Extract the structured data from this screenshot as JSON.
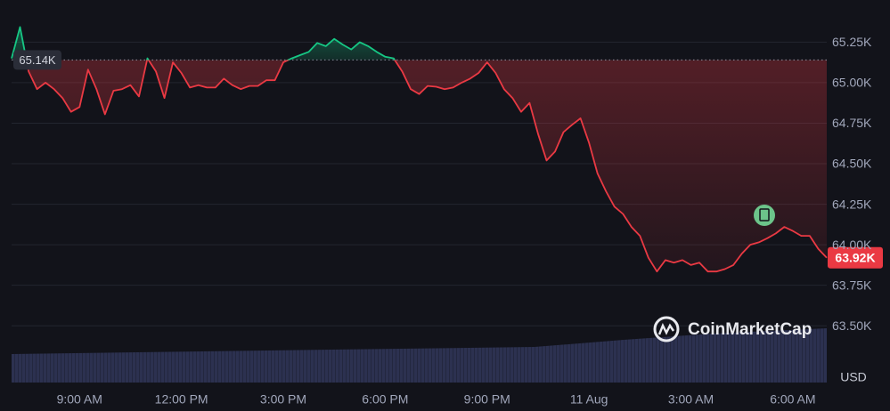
{
  "chart_data": {
    "type": "line",
    "watermark": "CoinMarketCap",
    "y_axis_label": "USD",
    "grid": true,
    "colors": {
      "up": "#16c784",
      "down": "#ea3943"
    },
    "xlim": [
      0,
      96
    ],
    "xticks": [
      {
        "value": 8,
        "label": "9:00 AM"
      },
      {
        "value": 20,
        "label": "12:00 PM"
      },
      {
        "value": 32,
        "label": "3:00 PM"
      },
      {
        "value": 44,
        "label": "6:00 PM"
      },
      {
        "value": 56,
        "label": "9:00 PM"
      },
      {
        "value": 68,
        "label": "11 Aug"
      },
      {
        "value": 80,
        "label": "3:00 AM"
      },
      {
        "value": 92,
        "label": "6:00 AM"
      }
    ],
    "ylim": [
      63150,
      65510
    ],
    "yticks": [
      {
        "value": 63500,
        "label": "63.50K"
      },
      {
        "value": 63750,
        "label": "63.75K"
      },
      {
        "value": 64000,
        "label": "64.00K"
      },
      {
        "value": 64250,
        "label": "64.25K"
      },
      {
        "value": 64500,
        "label": "64.50K"
      },
      {
        "value": 64750,
        "label": "64.75K"
      },
      {
        "value": 65000,
        "label": "65.00K"
      },
      {
        "value": 65250,
        "label": "65.25K"
      }
    ],
    "baseline": {
      "value": 65140,
      "label": "65.14K"
    },
    "last_price": {
      "value": 63920,
      "label": "63.92K"
    },
    "values": [
      65150,
      65343,
      65070,
      64960,
      65000,
      64960,
      64905,
      64820,
      64850,
      65080,
      64960,
      64805,
      64950,
      64960,
      64985,
      64915,
      65150,
      65070,
      64905,
      65125,
      65060,
      64970,
      64985,
      64970,
      64970,
      65025,
      64985,
      64960,
      64980,
      64980,
      65015,
      65015,
      65125,
      65150,
      65170,
      65190,
      65245,
      65225,
      65270,
      65235,
      65205,
      65250,
      65225,
      65190,
      65160,
      65150,
      65070,
      64960,
      64930,
      64980,
      64975,
      64960,
      64970,
      65000,
      65025,
      65060,
      65125,
      65060,
      64960,
      64905,
      64820,
      64875,
      64685,
      64520,
      64575,
      64695,
      64740,
      64780,
      64630,
      64440,
      64330,
      64235,
      64190,
      64110,
      64055,
      63920,
      63835,
      63905,
      63890,
      63905,
      63875,
      63890,
      63835,
      63835,
      63850,
      63875,
      63945,
      64000,
      64015,
      64040,
      64070,
      64110,
      64085,
      64055,
      64055,
      63975,
      63920
    ]
  }
}
